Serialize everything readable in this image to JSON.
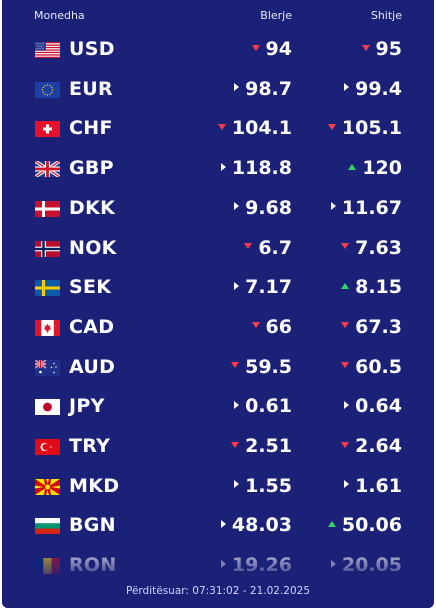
{
  "header": {
    "currency": "Monedha",
    "buy": "Blerje",
    "sell": "Shitje"
  },
  "updated": "Përditësuar: 07:31:02 - 21.02.2025",
  "rows": [
    {
      "code": "USD",
      "flag": "us-flag-icon",
      "buy": "94",
      "buy_trend": "down",
      "sell": "95",
      "sell_trend": "down"
    },
    {
      "code": "EUR",
      "flag": "eu-flag-icon",
      "buy": "98.7",
      "buy_trend": "same",
      "sell": "99.4",
      "sell_trend": "same"
    },
    {
      "code": "CHF",
      "flag": "ch-flag-icon",
      "buy": "104.1",
      "buy_trend": "down",
      "sell": "105.1",
      "sell_trend": "down"
    },
    {
      "code": "GBP",
      "flag": "gb-flag-icon",
      "buy": "118.8",
      "buy_trend": "same",
      "sell": "120",
      "sell_trend": "up"
    },
    {
      "code": "DKK",
      "flag": "dk-flag-icon",
      "buy": "9.68",
      "buy_trend": "same",
      "sell": "11.67",
      "sell_trend": "same"
    },
    {
      "code": "NOK",
      "flag": "no-flag-icon",
      "buy": "6.7",
      "buy_trend": "down",
      "sell": "7.63",
      "sell_trend": "down"
    },
    {
      "code": "SEK",
      "flag": "se-flag-icon",
      "buy": "7.17",
      "buy_trend": "same",
      "sell": "8.15",
      "sell_trend": "up"
    },
    {
      "code": "CAD",
      "flag": "ca-flag-icon",
      "buy": "66",
      "buy_trend": "down",
      "sell": "67.3",
      "sell_trend": "down"
    },
    {
      "code": "AUD",
      "flag": "au-flag-icon",
      "buy": "59.5",
      "buy_trend": "down",
      "sell": "60.5",
      "sell_trend": "down"
    },
    {
      "code": "JPY",
      "flag": "jp-flag-icon",
      "buy": "0.61",
      "buy_trend": "same",
      "sell": "0.64",
      "sell_trend": "same"
    },
    {
      "code": "TRY",
      "flag": "tr-flag-icon",
      "buy": "2.51",
      "buy_trend": "down",
      "sell": "2.64",
      "sell_trend": "down"
    },
    {
      "code": "MKD",
      "flag": "mk-flag-icon",
      "buy": "1.55",
      "buy_trend": "same",
      "sell": "1.61",
      "sell_trend": "same"
    },
    {
      "code": "BGN",
      "flag": "bg-flag-icon",
      "buy": "48.03",
      "buy_trend": "same",
      "sell": "50.06",
      "sell_trend": "up"
    },
    {
      "code": "RON",
      "flag": "ro-flag-icon",
      "buy": "19.26",
      "buy_trend": "same",
      "sell": "20.05",
      "sell_trend": "same"
    }
  ]
}
